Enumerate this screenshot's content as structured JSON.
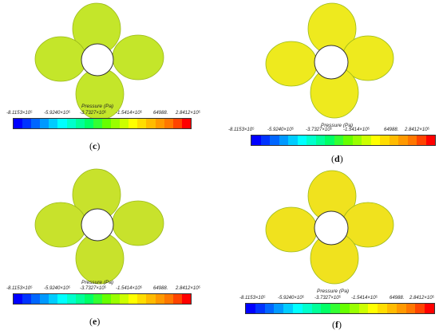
{
  "colorbar": {
    "title": "Pressure (Pa)",
    "ticks": [
      "-8.1153×10⁵",
      "-5.9240×10⁵",
      "-3.7327×10⁵",
      "-1.5414×10⁵",
      "64988.",
      "2.8412×10⁵"
    ],
    "colors": [
      "#0000ff",
      "#0033ff",
      "#0066ff",
      "#0099ff",
      "#00ccff",
      "#00ffff",
      "#00ffcc",
      "#00ff99",
      "#00ff66",
      "#33ff33",
      "#66ff00",
      "#99ff00",
      "#ccff00",
      "#ffff00",
      "#ffdd00",
      "#ffbb00",
      "#ff9900",
      "#ff7700",
      "#ff4400",
      "#ff0000"
    ]
  },
  "panels": [
    {
      "id": "c",
      "label": "c",
      "blade_color": "#c4e62a",
      "hub_color": "#ffffff"
    },
    {
      "id": "d",
      "label": "d",
      "blade_color": "#eeea1e",
      "hub_color": "#ffffff"
    },
    {
      "id": "e",
      "label": "e",
      "blade_color": "#c8e22c",
      "hub_color": "#ffffff"
    },
    {
      "id": "f",
      "label": "f",
      "blade_color": "#f0e21e",
      "hub_color": "#ffffff"
    }
  ]
}
